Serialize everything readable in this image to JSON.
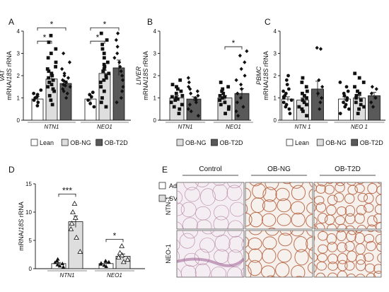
{
  "chart_data": [
    {
      "panel": "A",
      "type": "bar",
      "ylabel_prefix": "VAT",
      "ylabel_pre": "mRNA/",
      "ylabel_it": "18S",
      "ylabel_post": " rRNA",
      "ylim": [
        0,
        4
      ],
      "yticks": [
        "0",
        "1",
        "2",
        "3",
        "4"
      ],
      "groups": [
        "NTN1",
        "NEO1"
      ],
      "series": [
        {
          "name": "Lean",
          "color": "#ffffff",
          "marker": "circle",
          "values": [
            0.95,
            0.95
          ],
          "errors": [
            0.12,
            0.14
          ],
          "points": [
            [
              0.65,
              0.8,
              0.9,
              1.0,
              1.05,
              1.15,
              1.2,
              1.35
            ],
            [
              0.6,
              0.75,
              0.9,
              1.05,
              1.15,
              1.25
            ]
          ]
        },
        {
          "name": "OB-NG",
          "color": "#dedede",
          "marker": "square",
          "values": [
            1.85,
            2.1
          ],
          "errors": [
            0.15,
            0.15
          ],
          "points": [
            [
              0.7,
              0.9,
              1.1,
              1.3,
              1.4,
              1.5,
              1.6,
              1.7,
              1.8,
              1.9,
              2.0,
              2.1,
              2.2,
              2.3,
              2.4,
              2.6,
              2.8,
              3.0,
              3.2,
              3.5,
              3.8
            ],
            [
              0.6,
              0.8,
              1.0,
              1.3,
              1.5,
              1.7,
              1.8,
              1.9,
              2.0,
              2.1,
              2.2,
              2.3,
              2.4,
              2.5,
              2.6,
              2.8,
              3.0,
              3.2,
              3.4,
              3.6,
              3.9
            ]
          ]
        },
        {
          "name": "OB-T2D",
          "color": "#595959",
          "marker": "diamond",
          "values": [
            1.65,
            2.35
          ],
          "errors": [
            0.12,
            0.35
          ],
          "points": [
            [
              1.0,
              1.2,
              1.3,
              1.4,
              1.5,
              1.55,
              1.6,
              1.7,
              1.75,
              1.8,
              1.9,
              2.0,
              2.1,
              2.3,
              2.6,
              3.0
            ],
            [
              0.8,
              1.0,
              1.3,
              1.5,
              1.8,
              2.0,
              2.2,
              2.4,
              2.6,
              2.8,
              3.0,
              3.3,
              3.6,
              3.9
            ]
          ]
        }
      ],
      "sig": [
        {
          "g1": 0,
          "s1": 0,
          "g2": 0,
          "s2": 1,
          "y": 3.55,
          "label": "*"
        },
        {
          "g1": 0,
          "s1": 0,
          "g2": 0,
          "s2": 2,
          "y": 4.15,
          "label": "*"
        },
        {
          "g1": 1,
          "s1": 0,
          "g2": 1,
          "s2": 1,
          "y": 3.55,
          "label": "*"
        },
        {
          "g1": 1,
          "s1": 0,
          "g2": 1,
          "s2": 2,
          "y": 4.15,
          "label": "*"
        }
      ],
      "legend": [
        "Lean",
        "OB-NG",
        "OB-T2D"
      ]
    },
    {
      "panel": "B",
      "type": "bar",
      "ylabel_prefix": "LIVER",
      "ylabel_pre": "mRNA/",
      "ylabel_it": "18S",
      "ylabel_post": " rRNA",
      "ylim": [
        0,
        4
      ],
      "yticks": [
        "0",
        "1",
        "2",
        "3",
        "4"
      ],
      "groups": [
        "NTN1",
        "NEO1"
      ],
      "series": [
        {
          "name": "OB-NG",
          "color": "#dedede",
          "marker": "square",
          "values": [
            1.0,
            1.0
          ],
          "errors": [
            0.1,
            0.1
          ],
          "points": [
            [
              0.3,
              0.5,
              0.6,
              0.7,
              0.8,
              0.9,
              0.95,
              1.0,
              1.05,
              1.1,
              1.2,
              1.3,
              1.4,
              1.5,
              1.6,
              1.8
            ],
            [
              0.3,
              0.5,
              0.6,
              0.7,
              0.8,
              0.9,
              1.0,
              1.05,
              1.1,
              1.2,
              1.3,
              1.4,
              1.5,
              1.7
            ]
          ]
        },
        {
          "name": "OB-T2D",
          "color": "#595959",
          "marker": "diamond",
          "values": [
            0.95,
            1.2
          ],
          "errors": [
            0.1,
            0.22
          ],
          "points": [
            [
              0.2,
              0.4,
              0.5,
              0.7,
              0.8,
              0.9,
              1.0,
              1.1,
              1.2,
              1.3,
              1.4,
              1.5,
              1.7,
              1.9
            ],
            [
              0.2,
              0.4,
              0.6,
              0.8,
              1.0,
              1.2,
              1.4,
              1.6,
              1.8,
              2.0,
              2.3,
              2.6,
              2.9,
              3.1
            ]
          ]
        }
      ],
      "sig": [
        {
          "g1": 1,
          "s1": 0,
          "g2": 1,
          "s2": 1,
          "y": 3.3,
          "label": "*"
        }
      ],
      "legend": [
        "OB-NG",
        "OB-T2D"
      ]
    },
    {
      "panel": "C",
      "type": "bar",
      "ylabel_prefix": "PBMC",
      "ylabel_pre": "mRNA/",
      "ylabel_it": "18S",
      "ylabel_post": " rRNA",
      "ylim": [
        0,
        4
      ],
      "yticks": [
        "0",
        "1",
        "2",
        "3",
        "4"
      ],
      "groups": [
        "NTN 1",
        "NEO 1"
      ],
      "series": [
        {
          "name": "Lean",
          "color": "#ffffff",
          "marker": "circle",
          "values": [
            0.95,
            0.95
          ],
          "errors": [
            0.1,
            0.1
          ],
          "points": [
            [
              0.3,
              0.5,
              0.6,
              0.7,
              0.8,
              0.9,
              1.0,
              1.05,
              1.1,
              1.2,
              1.3,
              1.4,
              1.6,
              1.8,
              2.0
            ],
            [
              0.3,
              0.5,
              0.6,
              0.7,
              0.8,
              0.9,
              1.0,
              1.1,
              1.2,
              1.3,
              1.5,
              1.7
            ]
          ]
        },
        {
          "name": "OB-NG",
          "color": "#dedede",
          "marker": "square",
          "values": [
            0.9,
            1.0
          ],
          "errors": [
            0.1,
            0.1
          ],
          "points": [
            [
              0.2,
              0.4,
              0.5,
              0.6,
              0.7,
              0.8,
              0.9,
              1.0,
              1.1,
              1.2,
              1.3,
              1.5,
              1.7,
              1.9
            ],
            [
              0.3,
              0.5,
              0.6,
              0.7,
              0.8,
              0.9,
              1.0,
              1.1,
              1.2,
              1.3,
              1.5,
              1.7,
              1.9,
              2.1
            ]
          ]
        },
        {
          "name": "OB-T2D",
          "color": "#595959",
          "marker": "diamond",
          "values": [
            1.4,
            1.1
          ],
          "errors": [
            0.35,
            0.15
          ],
          "points": [
            [
              0.5,
              0.8,
              1.0,
              1.2,
              1.5,
              1.8,
              3.2,
              3.25
            ],
            [
              0.6,
              0.8,
              1.0,
              1.2,
              1.4,
              1.5
            ]
          ]
        }
      ],
      "sig": [],
      "legend": [
        "Lean",
        "OB-NG",
        "OB-T2D"
      ]
    },
    {
      "panel": "D",
      "type": "bar",
      "ylabel_prefix": "",
      "ylabel_pre": "mRNA/",
      "ylabel_it": "18S",
      "ylabel_post": " rRNA",
      "ylim": [
        0,
        15
      ],
      "yticks": [
        "0",
        "5",
        "10",
        "15"
      ],
      "groups": [
        "NTN1",
        "NEO1"
      ],
      "series": [
        {
          "name": "Adipocytes",
          "color": "#ffffff",
          "marker": "tri-filled",
          "values": [
            0.9,
            0.9
          ],
          "errors": [
            0.2,
            0.15
          ],
          "points": [
            [
              0.3,
              0.5,
              0.7,
              0.9,
              1.1,
              1.4,
              1.7
            ],
            [
              0.4,
              0.6,
              0.8,
              1.0,
              1.2,
              1.4
            ]
          ]
        },
        {
          "name": "SVFC",
          "color": "#dedede",
          "marker": "tri-open",
          "values": [
            8.3,
            2.2
          ],
          "errors": [
            1.0,
            0.4
          ],
          "points": [
            [
              3.0,
              5.5,
              7.0,
              8.0,
              9.0,
              10.0,
              11.5
            ],
            [
              1.2,
              1.6,
              2.0,
              2.4,
              2.8,
              4.0
            ]
          ]
        }
      ],
      "sig": [
        {
          "g1": 0,
          "s1": 0,
          "g2": 0,
          "s2": 1,
          "y": 13.2,
          "label": "***"
        },
        {
          "g1": 1,
          "s1": 0,
          "g2": 1,
          "s2": 1,
          "y": 5.2,
          "label": "*"
        }
      ],
      "legend": [
        "Adipocytes",
        "SVFC"
      ]
    }
  ],
  "histology": {
    "label": "E",
    "columns": [
      "Control",
      "OB-NG",
      "OB-T2D"
    ],
    "rows": [
      "NTN-1",
      "NEO-1"
    ]
  }
}
